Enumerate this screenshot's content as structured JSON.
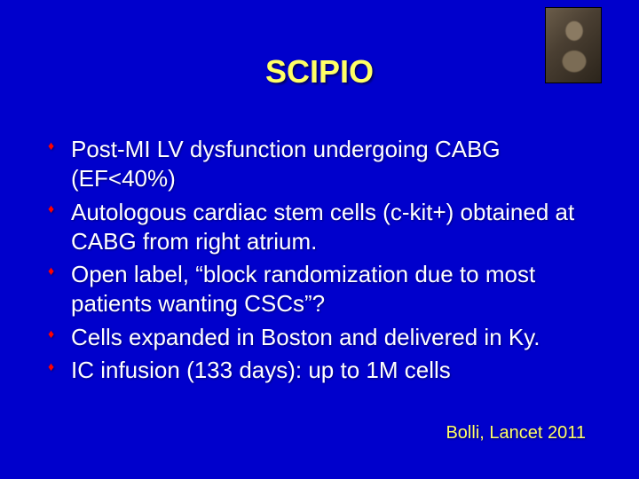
{
  "slide": {
    "background_color": "#0000cc",
    "text_color": "#ffffff",
    "title_color": "#ffff66",
    "bullet_color": "#ff0000",
    "title": "SCIPIO",
    "title_fontsize": 36,
    "body_fontsize": 26,
    "body_lineheight": 1.28,
    "bullets": [
      "Post-MI LV dysfunction undergoing CABG (EF<40%)",
      "Autologous cardiac stem cells (c-kit+) obtained at CABG from right atrium.",
      "Open label, “block randomization due to most patients wanting CSCs”?",
      "Cells expanded in Boston and delivered in Ky.",
      "IC infusion (133 days): up to 1M cells"
    ],
    "citation": "Bolli, Lancet 2011",
    "citation_color": "#ffff66",
    "citation_fontsize": 20
  }
}
